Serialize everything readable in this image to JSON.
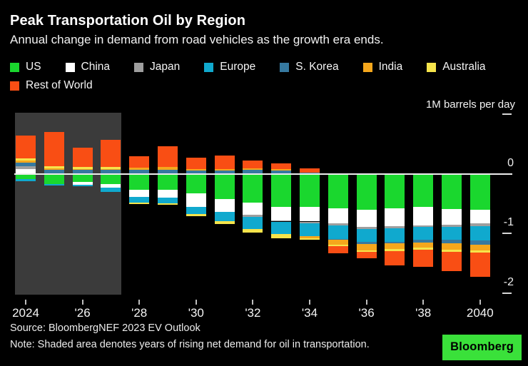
{
  "header": {
    "title": "Peak Transportation Oil by Region",
    "subtitle": "Annual change in demand from road vehicles as the growth era ends."
  },
  "legend": [
    {
      "label": "US",
      "color": "#1ad72e"
    },
    {
      "label": "China",
      "color": "#ffffff"
    },
    {
      "label": "Japan",
      "color": "#9e9e9e"
    },
    {
      "label": "Europe",
      "color": "#10a9ce"
    },
    {
      "label": "S. Korea",
      "color": "#3679a0"
    },
    {
      "label": "India",
      "color": "#f5a71c"
    },
    {
      "label": "Australia",
      "color": "#f6e44b"
    },
    {
      "label": "Rest of World",
      "color": "#f94e14"
    }
  ],
  "axis": {
    "unit_label": "1M barrels per day",
    "y_ticks": [
      {
        "value": 1,
        "label": "",
        "dash": true
      },
      {
        "value": 0,
        "label": "0",
        "dash": false
      },
      {
        "value": -1,
        "label": "-1",
        "dash": true
      },
      {
        "value": -2,
        "label": "-2",
        "dash": true
      }
    ],
    "x_tick_labels": [
      "2024",
      "'26",
      "'28",
      "'30",
      "'32",
      "'34",
      "'36",
      "'38",
      "2040"
    ]
  },
  "footer": {
    "source": "Source: BloombergNEF 2023 EV Outlook",
    "note": "Note: Shaded area denotes years of rising net demand for oil in transportation.",
    "logo": "Bloomberg"
  },
  "chart_data": {
    "type": "bar",
    "subtype": "stacked-diverging",
    "title": "Peak Transportation Oil by Region",
    "subtitle": "Annual change in demand from road vehicles as the growth era ends.",
    "ylabel": "1M barrels per day",
    "ylim": [
      -2.2,
      1
    ],
    "grid": false,
    "legend_position": "top",
    "x": [
      2024,
      2025,
      2026,
      2027,
      2028,
      2029,
      2030,
      2031,
      2032,
      2033,
      2034,
      2035,
      2036,
      2037,
      2038,
      2039,
      2040
    ],
    "shaded_region": {
      "from": 2024,
      "to": 2027,
      "meaning": "years of rising net demand for oil in transportation"
    },
    "series": [
      {
        "name": "US",
        "color": "#1ad72e",
        "values": [
          -0.09,
          -0.17,
          -0.14,
          -0.17,
          -0.27,
          -0.27,
          -0.33,
          -0.42,
          -0.48,
          -0.56,
          -0.56,
          -0.58,
          -0.6,
          -0.58,
          -0.56,
          -0.59,
          -0.6
        ]
      },
      {
        "name": "China",
        "color": "#ffffff",
        "values": [
          0.08,
          0,
          -0.04,
          -0.06,
          -0.12,
          -0.13,
          -0.22,
          -0.22,
          -0.21,
          -0.22,
          -0.24,
          -0.25,
          -0.29,
          -0.3,
          -0.3,
          -0.26,
          -0.23
        ]
      },
      {
        "name": "Japan",
        "color": "#9e9e9e",
        "values": [
          0.04,
          0,
          0,
          0,
          0,
          0,
          0,
          0,
          -0.03,
          -0.02,
          -0.03,
          -0.03,
          -0.03,
          -0.03,
          -0.03,
          -0.04,
          -0.05
        ]
      },
      {
        "name": "Europe",
        "color": "#10a9ce",
        "values": [
          -0.03,
          -0.03,
          -0.03,
          -0.07,
          -0.09,
          -0.09,
          -0.13,
          -0.15,
          -0.2,
          -0.21,
          -0.21,
          -0.23,
          -0.22,
          -0.23,
          -0.21,
          -0.22,
          -0.24
        ]
      },
      {
        "name": "S. Korea",
        "color": "#3679a0",
        "values": [
          0.06,
          0.06,
          0.06,
          0.06,
          0.07,
          0.06,
          0.05,
          0.05,
          0.06,
          0.05,
          0.02,
          -0.02,
          -0.04,
          -0.03,
          -0.05,
          -0.06,
          -0.07
        ]
      },
      {
        "name": "India",
        "color": "#f5a71c",
        "values": [
          0.04,
          0.03,
          0.02,
          0.02,
          0.03,
          0.05,
          0.03,
          0.03,
          0.03,
          0.03,
          -0.04,
          -0.08,
          -0.1,
          -0.09,
          -0.09,
          -0.1,
          -0.09
        ]
      },
      {
        "name": "Australia",
        "color": "#f6e44b",
        "values": [
          0.04,
          0.04,
          0.03,
          0.03,
          -0.03,
          -0.03,
          -0.03,
          -0.05,
          -0.06,
          -0.07,
          -0.03,
          -0.02,
          -0.03,
          -0.03,
          -0.03,
          -0.04,
          -0.04
        ]
      },
      {
        "name": "Rest of World",
        "color": "#f94e14",
        "values": [
          0.38,
          0.57,
          0.33,
          0.46,
          0.19,
          0.35,
          0.19,
          0.22,
          0.13,
          0.09,
          0.07,
          -0.12,
          -0.11,
          -0.24,
          -0.29,
          -0.32,
          -0.4
        ]
      }
    ]
  }
}
